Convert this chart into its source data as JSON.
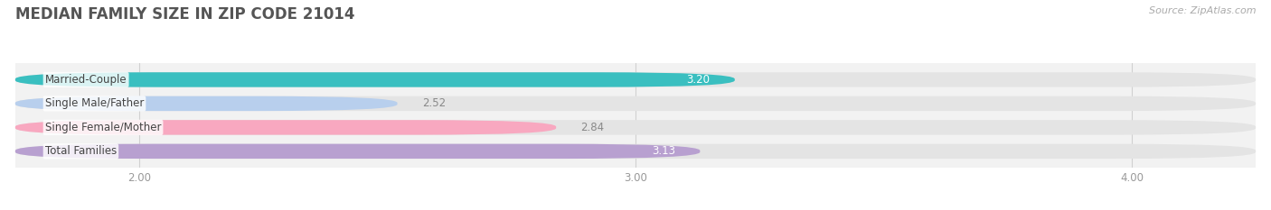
{
  "title": "MEDIAN FAMILY SIZE IN ZIP CODE 21014",
  "source": "Source: ZipAtlas.com",
  "categories": [
    "Married-Couple",
    "Single Male/Father",
    "Single Female/Mother",
    "Total Families"
  ],
  "values": [
    3.2,
    2.52,
    2.84,
    3.13
  ],
  "bar_colors": [
    "#3abfc0",
    "#b8cfed",
    "#f8a8c0",
    "#b8a0d0"
  ],
  "xlim": [
    1.75,
    4.25
  ],
  "xticks": [
    2.0,
    3.0,
    4.0
  ],
  "xtick_labels": [
    "2.00",
    "3.00",
    "4.00"
  ],
  "bar_height": 0.62,
  "label_fontsize": 8.5,
  "value_fontsize": 8.5,
  "title_fontsize": 12,
  "source_fontsize": 8,
  "background_color": "#ffffff",
  "plot_bg_color": "#f2f2f2",
  "bar_bg_color": "#e4e4e4",
  "label_color": "#444444",
  "value_color_inside": "#ffffff",
  "value_color_outside": "#888888",
  "grid_color": "#d0d0d0",
  "title_color": "#555555"
}
